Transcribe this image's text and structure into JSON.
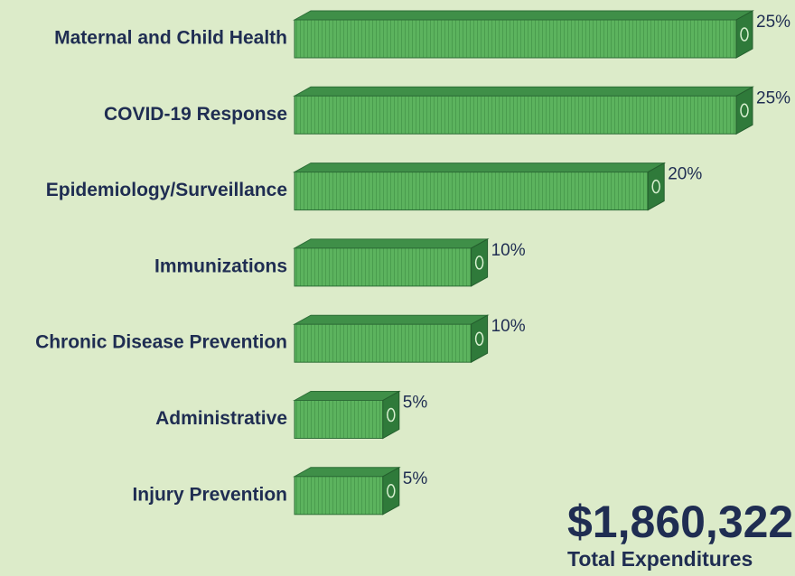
{
  "chart_data": {
    "type": "bar",
    "orientation": "horizontal",
    "categories": [
      "Maternal and Child Health",
      "COVID-19 Response",
      "Epidemiology/Surveillance",
      "Immunizations",
      "Chronic Disease Prevention",
      "Administrative",
      "Injury Prevention"
    ],
    "values": [
      25,
      25,
      20,
      10,
      10,
      5,
      5
    ],
    "value_labels": [
      "25%",
      "25%",
      "20%",
      "10%",
      "10%",
      "5%",
      "5%"
    ],
    "color": "#5cb35e",
    "total": "$1,860,322",
    "total_label": "Total Expenditures"
  }
}
